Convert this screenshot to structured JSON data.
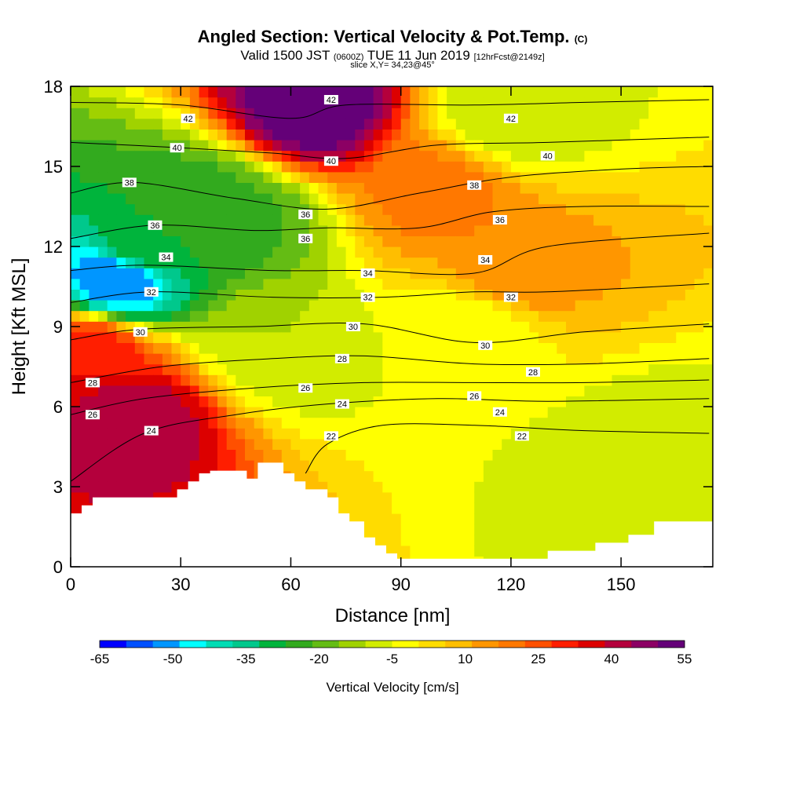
{
  "title": {
    "main": "Angled Section: Vertical Velocity & Pot.Temp.",
    "main_units": "(C)",
    "valid_prefix": "Valid 1500 JST",
    "valid_zulu": "(0600Z)",
    "valid_date": "TUE 11 Jun 2019",
    "forecast": "[12hrFcst@2149z]",
    "slice": "slice X,Y= 34,23@45°"
  },
  "chart_data": {
    "type": "heatmap",
    "xlabel": "Distance [nm]",
    "ylabel": "Height [Kft MSL]",
    "xlim": [
      0,
      175
    ],
    "ylim": [
      0,
      18
    ],
    "x_ticks": [
      "0",
      "30",
      "60",
      "90",
      "120",
      "150"
    ],
    "x_tick_values": [
      0,
      30,
      60,
      90,
      120,
      150
    ],
    "y_ticks": [
      "0",
      "3",
      "6",
      "9",
      "12",
      "15",
      "18"
    ],
    "y_tick_values": [
      0,
      3,
      6,
      9,
      12,
      15,
      18
    ],
    "colorbar": {
      "label": "Vertical Velocity [cm/s]",
      "min": -65,
      "max": 55,
      "step": 5,
      "tick_labels": [
        "-65",
        "-50",
        "-35",
        "-20",
        "-5",
        "10",
        "25",
        "40",
        "55"
      ],
      "colors": [
        "#0000ff",
        "#0050ff",
        "#0096ff",
        "#00ffff",
        "#00dcb4",
        "#00c88c",
        "#00b43c",
        "#32aa1e",
        "#64bc14",
        "#a0d200",
        "#d2ec00",
        "#ffff00",
        "#ffdc00",
        "#ffbe00",
        "#ff9600",
        "#ff7800",
        "#ff5000",
        "#ff1e00",
        "#dc0000",
        "#b4003c",
        "#8c0064",
        "#640078"
      ]
    },
    "velocity_features": [
      {
        "x": 13,
        "y": 10.8,
        "value": -55
      },
      {
        "x": 20,
        "y": 12.0,
        "value": -30
      },
      {
        "x": 34,
        "y": 13.5,
        "value": -28
      },
      {
        "x": 45,
        "y": 13.0,
        "value": -26
      },
      {
        "x": 56,
        "y": 8.5,
        "value": -15
      },
      {
        "x": 5,
        "y": 8.0,
        "value": 25
      },
      {
        "x": 16,
        "y": 5.5,
        "value": 35
      },
      {
        "x": 65,
        "y": 17.2,
        "value": 45
      },
      {
        "x": 100,
        "y": 14.0,
        "value": 12
      },
      {
        "x": 120,
        "y": 11.0,
        "value": 10
      },
      {
        "x": 110,
        "y": 9.0,
        "value": -10
      },
      {
        "x": 158,
        "y": 3.8,
        "value": -15
      },
      {
        "x": 120,
        "y": 17.0,
        "value": -15
      }
    ],
    "theta_contours": [
      {
        "label": "22",
        "points": [
          [
            64,
            3.5
          ],
          [
            70,
            4.6
          ],
          [
            85,
            5.3
          ],
          [
            110,
            5.3
          ],
          [
            140,
            5.1
          ],
          [
            174,
            5.0
          ]
        ]
      },
      {
        "label": "24",
        "points": [
          [
            0,
            3.2
          ],
          [
            20,
            5.0
          ],
          [
            45,
            5.7
          ],
          [
            70,
            6.1
          ],
          [
            100,
            6.3
          ],
          [
            130,
            6.2
          ],
          [
            174,
            6.3
          ]
        ]
      },
      {
        "label": "26",
        "points": [
          [
            0,
            5.7
          ],
          [
            20,
            6.3
          ],
          [
            50,
            6.7
          ],
          [
            80,
            6.9
          ],
          [
            110,
            6.9
          ],
          [
            140,
            6.9
          ],
          [
            174,
            7.0
          ]
        ]
      },
      {
        "label": "28",
        "points": [
          [
            0,
            6.9
          ],
          [
            25,
            7.5
          ],
          [
            55,
            7.8
          ],
          [
            80,
            7.9
          ],
          [
            110,
            7.6
          ],
          [
            140,
            7.6
          ],
          [
            174,
            7.8
          ]
        ]
      },
      {
        "label": "30",
        "points": [
          [
            0,
            8.5
          ],
          [
            19,
            8.9
          ],
          [
            50,
            9.0
          ],
          [
            80,
            9.1
          ],
          [
            110,
            8.4
          ],
          [
            140,
            8.8
          ],
          [
            174,
            9.1
          ]
        ]
      },
      {
        "label": "32",
        "points": [
          [
            0,
            9.9
          ],
          [
            22,
            10.3
          ],
          [
            55,
            10.1
          ],
          [
            85,
            10.1
          ],
          [
            110,
            10.3
          ],
          [
            130,
            10.3
          ],
          [
            174,
            10.6
          ]
        ]
      },
      {
        "label": "34",
        "points": [
          [
            0,
            11.1
          ],
          [
            20,
            11.3
          ],
          [
            55,
            11.1
          ],
          [
            80,
            11.1
          ],
          [
            110,
            11.0
          ],
          [
            130,
            12.0
          ],
          [
            174,
            12.5
          ]
        ]
      },
      {
        "label": "36",
        "points": [
          [
            0,
            12.3
          ],
          [
            23,
            12.8
          ],
          [
            50,
            12.6
          ],
          [
            70,
            12.7
          ],
          [
            95,
            12.7
          ],
          [
            115,
            13.3
          ],
          [
            140,
            13.5
          ],
          [
            174,
            13.5
          ]
        ]
      },
      {
        "label": "38",
        "points": [
          [
            0,
            14.0
          ],
          [
            17,
            14.4
          ],
          [
            45,
            13.8
          ],
          [
            70,
            13.4
          ],
          [
            95,
            14.0
          ],
          [
            120,
            14.6
          ],
          [
            150,
            14.9
          ],
          [
            174,
            15.0
          ]
        ]
      },
      {
        "label": "40",
        "points": [
          [
            0,
            15.9
          ],
          [
            30,
            15.7
          ],
          [
            55,
            15.5
          ],
          [
            75,
            15.3
          ],
          [
            100,
            15.8
          ],
          [
            130,
            15.9
          ],
          [
            174,
            16.1
          ]
        ]
      },
      {
        "label": "42",
        "points": [
          [
            0,
            17.4
          ],
          [
            30,
            17.3
          ],
          [
            60,
            16.8
          ],
          [
            75,
            17.3
          ],
          [
            110,
            17.3
          ],
          [
            140,
            17.4
          ],
          [
            174,
            17.5
          ]
        ]
      }
    ],
    "contour_labels": [
      {
        "text": "22",
        "x": 71,
        "y": 4.9
      },
      {
        "text": "22",
        "x": 123,
        "y": 4.9
      },
      {
        "text": "24",
        "x": 22,
        "y": 5.1
      },
      {
        "text": "24",
        "x": 74,
        "y": 6.1
      },
      {
        "text": "24",
        "x": 117,
        "y": 5.8
      },
      {
        "text": "26",
        "x": 6,
        "y": 5.7
      },
      {
        "text": "26",
        "x": 64,
        "y": 6.7
      },
      {
        "text": "26",
        "x": 110,
        "y": 6.4
      },
      {
        "text": "28",
        "x": 6,
        "y": 6.9
      },
      {
        "text": "28",
        "x": 74,
        "y": 7.8
      },
      {
        "text": "28",
        "x": 126,
        "y": 7.3
      },
      {
        "text": "30",
        "x": 19,
        "y": 8.8
      },
      {
        "text": "30",
        "x": 77,
        "y": 9.0
      },
      {
        "text": "30",
        "x": 113,
        "y": 8.3
      },
      {
        "text": "32",
        "x": 22,
        "y": 10.3
      },
      {
        "text": "32",
        "x": 81,
        "y": 10.1
      },
      {
        "text": "32",
        "x": 120,
        "y": 10.1
      },
      {
        "text": "34",
        "x": 26,
        "y": 11.6
      },
      {
        "text": "34",
        "x": 81,
        "y": 11.0
      },
      {
        "text": "34",
        "x": 113,
        "y": 11.5
      },
      {
        "text": "36",
        "x": 23,
        "y": 12.8
      },
      {
        "text": "36",
        "x": 64,
        "y": 12.3
      },
      {
        "text": "36",
        "x": 64,
        "y": 13.2
      },
      {
        "text": "36",
        "x": 117,
        "y": 13.0
      },
      {
        "text": "38",
        "x": 16,
        "y": 14.4
      },
      {
        "text": "38",
        "x": 110,
        "y": 14.3
      },
      {
        "text": "40",
        "x": 29,
        "y": 15.7
      },
      {
        "text": "40",
        "x": 71,
        "y": 15.2
      },
      {
        "text": "40",
        "x": 130,
        "y": 15.4
      },
      {
        "text": "42",
        "x": 32,
        "y": 16.8
      },
      {
        "text": "42",
        "x": 71,
        "y": 17.5
      },
      {
        "text": "42",
        "x": 120,
        "y": 16.8
      }
    ],
    "terrain": [
      [
        0,
        2.0
      ],
      [
        3,
        2.0
      ],
      [
        3,
        2.3
      ],
      [
        6,
        2.3
      ],
      [
        6,
        2.6
      ],
      [
        29,
        2.6
      ],
      [
        29,
        2.9
      ],
      [
        32,
        2.9
      ],
      [
        32,
        3.2
      ],
      [
        35,
        3.2
      ],
      [
        35,
        3.5
      ],
      [
        38,
        3.5
      ],
      [
        38,
        3.6
      ],
      [
        48,
        3.6
      ],
      [
        48,
        3.3
      ],
      [
        51,
        3.3
      ],
      [
        51,
        3.9
      ],
      [
        58,
        3.9
      ],
      [
        58,
        3.5
      ],
      [
        61,
        3.5
      ],
      [
        61,
        3.2
      ],
      [
        64,
        3.2
      ],
      [
        64,
        2.9
      ],
      [
        70,
        2.9
      ],
      [
        70,
        2.6
      ],
      [
        73,
        2.6
      ],
      [
        73,
        2.0
      ],
      [
        76,
        2.0
      ],
      [
        76,
        1.7
      ],
      [
        80,
        1.7
      ],
      [
        80,
        1.1
      ],
      [
        83,
        1.1
      ],
      [
        83,
        0.8
      ],
      [
        86,
        0.8
      ],
      [
        86,
        0.5
      ],
      [
        89,
        0.5
      ],
      [
        89,
        0.3
      ],
      [
        130,
        0.3
      ],
      [
        130,
        0.6
      ],
      [
        143,
        0.6
      ],
      [
        143,
        0.9
      ],
      [
        152,
        0.9
      ],
      [
        152,
        1.2
      ],
      [
        159,
        1.2
      ],
      [
        159,
        1.7
      ],
      [
        174,
        1.7
      ]
    ]
  }
}
